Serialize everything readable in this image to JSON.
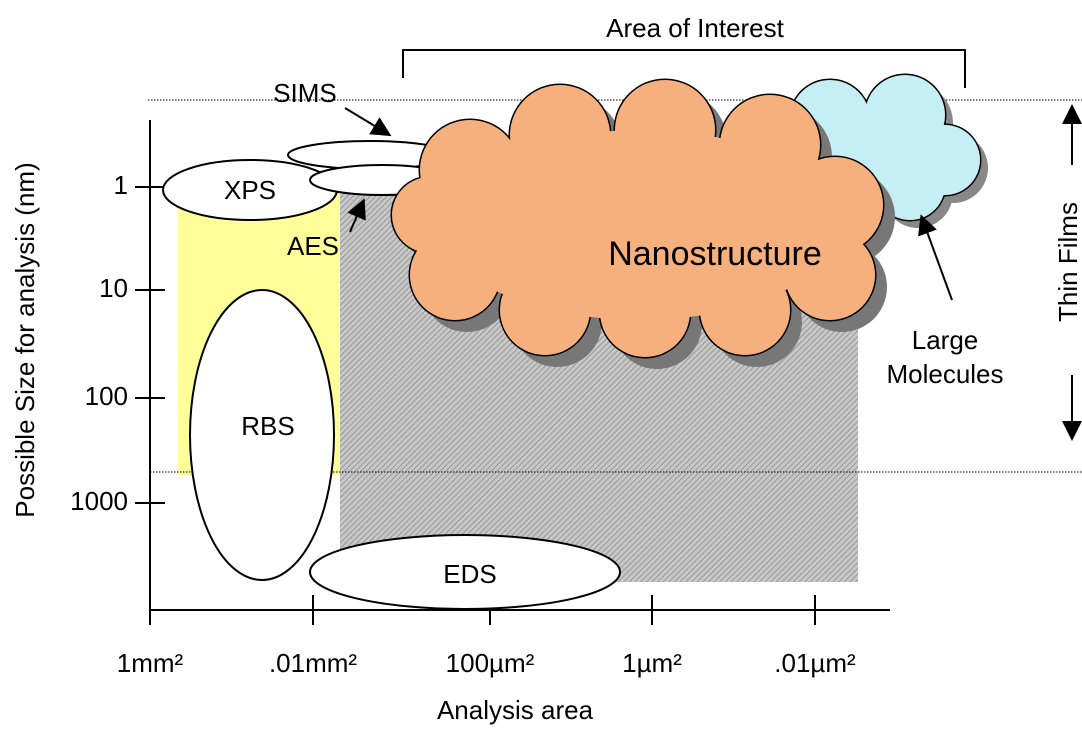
{
  "title": "Area of Interest",
  "y_axis": {
    "label": "Possible Size for analysis (nm)",
    "ticks": [
      "1",
      "10",
      "100",
      "1000"
    ]
  },
  "x_axis": {
    "label": "Analysis area",
    "ticks": [
      "1mm²",
      ".01mm²",
      "100µm²",
      "1µm²",
      ".01µm²"
    ]
  },
  "techniques": {
    "sims": "SIMS",
    "xps": "XPS",
    "aes": "AES",
    "rbs": "RBS",
    "eds": "EDS"
  },
  "regions": {
    "nanostructure": "Nanostructure",
    "large_molecules": [
      "Large",
      "Molecules"
    ],
    "thin_films": "Thin Films"
  }
}
